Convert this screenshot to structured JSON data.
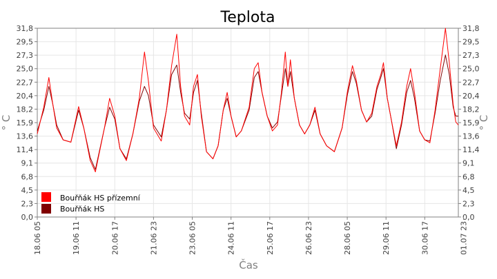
{
  "chart_data": {
    "type": "line",
    "title": "Teplota",
    "xlabel": "Čas",
    "ylabel": "° C",
    "ylabel_right": "° C",
    "yticks": [
      "0,0",
      "2,3",
      "4,5",
      "6,8",
      "9,1",
      "11,4",
      "13,6",
      "15,9",
      "18,2",
      "20,4",
      "22,7",
      "25,0",
      "27,3",
      "29,5",
      "31,8"
    ],
    "ylim": [
      0,
      31.8
    ],
    "xlim": [
      0,
      326
    ],
    "xticks": [
      {
        "label": "18.06 05",
        "x": 0
      },
      {
        "label": "19.06 11",
        "x": 30
      },
      {
        "label": "20.06 17",
        "x": 60
      },
      {
        "label": "21.06 23",
        "x": 90
      },
      {
        "label": "23.06 05",
        "x": 120
      },
      {
        "label": "24.06 11",
        "x": 150
      },
      {
        "label": "25.06 17",
        "x": 180
      },
      {
        "label": "26.06 23",
        "x": 210
      },
      {
        "label": "28.06 05",
        "x": 240
      },
      {
        "label": "29.06 11",
        "x": 270
      },
      {
        "label": "30.06 17",
        "x": 300
      },
      {
        "label": "01.07 23",
        "x": 330
      }
    ],
    "grid": true,
    "legend_position": "bottom-left",
    "series": [
      {
        "name": "Bouřňák HS přízemní",
        "color": "#ff0000",
        "points": [
          [
            0,
            14.0
          ],
          [
            5,
            18.5
          ],
          [
            9,
            23.5
          ],
          [
            12,
            19.0
          ],
          [
            15,
            15.0
          ],
          [
            20,
            13.0
          ],
          [
            26,
            12.6
          ],
          [
            32,
            18.6
          ],
          [
            36,
            15.0
          ],
          [
            41,
            9.5
          ],
          [
            45,
            7.6
          ],
          [
            52,
            15.0
          ],
          [
            56,
            20.0
          ],
          [
            60,
            17.0
          ],
          [
            64,
            11.5
          ],
          [
            69,
            9.5
          ],
          [
            74,
            14.0
          ],
          [
            79,
            20.0
          ],
          [
            83,
            27.8
          ],
          [
            86,
            23.0
          ],
          [
            90,
            15.0
          ],
          [
            96,
            12.8
          ],
          [
            100,
            18.0
          ],
          [
            104,
            25.5
          ],
          [
            108,
            30.8
          ],
          [
            111,
            22.0
          ],
          [
            114,
            17.0
          ],
          [
            118,
            15.5
          ],
          [
            121,
            22.0
          ],
          [
            124,
            24.0
          ],
          [
            127,
            17.0
          ],
          [
            131,
            11.0
          ],
          [
            136,
            9.8
          ],
          [
            140,
            12.0
          ],
          [
            144,
            18.0
          ],
          [
            147,
            21.0
          ],
          [
            150,
            17.0
          ],
          [
            154,
            13.5
          ],
          [
            158,
            14.5
          ],
          [
            164,
            18.5
          ],
          [
            168,
            25.0
          ],
          [
            171,
            26.0
          ],
          [
            174,
            21.0
          ],
          [
            178,
            17.0
          ],
          [
            182,
            14.5
          ],
          [
            186,
            15.5
          ],
          [
            189,
            21.0
          ],
          [
            192,
            27.8
          ],
          [
            194,
            22.0
          ],
          [
            196,
            26.5
          ],
          [
            199,
            20.0
          ],
          [
            203,
            15.5
          ],
          [
            207,
            14.0
          ],
          [
            211,
            15.5
          ],
          [
            215,
            18.5
          ],
          [
            219,
            14.0
          ],
          [
            224,
            12.0
          ],
          [
            230,
            11.0
          ],
          [
            236,
            15.0
          ],
          [
            240,
            21.0
          ],
          [
            244,
            25.5
          ],
          [
            247,
            23.0
          ],
          [
            251,
            18.0
          ],
          [
            255,
            16.0
          ],
          [
            259,
            17.5
          ],
          [
            263,
            22.0
          ],
          [
            266,
            24.0
          ],
          [
            268,
            26.0
          ],
          [
            271,
            20.0
          ],
          [
            274,
            16.5
          ],
          [
            278,
            12.0
          ],
          [
            282,
            16.0
          ],
          [
            286,
            22.0
          ],
          [
            289,
            25.0
          ],
          [
            292,
            21.0
          ],
          [
            296,
            14.5
          ],
          [
            300,
            13.0
          ],
          [
            304,
            12.5
          ],
          [
            308,
            18.0
          ],
          [
            312,
            25.0
          ],
          [
            316,
            31.8
          ],
          [
            319,
            26.0
          ],
          [
            322,
            19.0
          ],
          [
            324,
            16.0
          ],
          [
            326,
            15.5
          ]
        ]
      },
      {
        "name": "Bouřňák HS",
        "color": "#800000",
        "points": [
          [
            0,
            14.5
          ],
          [
            5,
            18.0
          ],
          [
            9,
            22.0
          ],
          [
            12,
            19.0
          ],
          [
            15,
            15.5
          ],
          [
            20,
            13.0
          ],
          [
            26,
            12.6
          ],
          [
            32,
            18.0
          ],
          [
            36,
            15.0
          ],
          [
            41,
            10.0
          ],
          [
            45,
            8.0
          ],
          [
            52,
            15.0
          ],
          [
            56,
            18.5
          ],
          [
            60,
            16.5
          ],
          [
            64,
            11.5
          ],
          [
            69,
            9.8
          ],
          [
            74,
            14.0
          ],
          [
            79,
            19.5
          ],
          [
            83,
            22.0
          ],
          [
            86,
            20.5
          ],
          [
            90,
            15.5
          ],
          [
            96,
            13.5
          ],
          [
            100,
            18.0
          ],
          [
            104,
            24.0
          ],
          [
            108,
            25.6
          ],
          [
            111,
            21.0
          ],
          [
            114,
            17.5
          ],
          [
            118,
            16.5
          ],
          [
            121,
            21.0
          ],
          [
            124,
            23.0
          ],
          [
            127,
            17.5
          ],
          [
            131,
            11.0
          ],
          [
            136,
            9.8
          ],
          [
            140,
            12.0
          ],
          [
            144,
            18.0
          ],
          [
            147,
            20.0
          ],
          [
            150,
            17.0
          ],
          [
            154,
            13.5
          ],
          [
            158,
            14.5
          ],
          [
            164,
            18.0
          ],
          [
            168,
            23.5
          ],
          [
            171,
            24.5
          ],
          [
            174,
            21.0
          ],
          [
            178,
            17.0
          ],
          [
            182,
            15.0
          ],
          [
            186,
            16.0
          ],
          [
            189,
            20.5
          ],
          [
            192,
            25.0
          ],
          [
            194,
            22.0
          ],
          [
            196,
            24.5
          ],
          [
            199,
            20.0
          ],
          [
            203,
            15.5
          ],
          [
            207,
            14.0
          ],
          [
            211,
            15.5
          ],
          [
            215,
            18.0
          ],
          [
            219,
            14.0
          ],
          [
            224,
            12.0
          ],
          [
            230,
            11.0
          ],
          [
            236,
            15.0
          ],
          [
            240,
            20.5
          ],
          [
            244,
            24.5
          ],
          [
            247,
            22.5
          ],
          [
            251,
            18.0
          ],
          [
            255,
            16.0
          ],
          [
            259,
            17.0
          ],
          [
            263,
            21.5
          ],
          [
            266,
            23.5
          ],
          [
            268,
            25.0
          ],
          [
            271,
            20.0
          ],
          [
            274,
            16.5
          ],
          [
            278,
            11.5
          ],
          [
            282,
            15.5
          ],
          [
            286,
            21.0
          ],
          [
            289,
            23.0
          ],
          [
            292,
            20.0
          ],
          [
            296,
            14.5
          ],
          [
            300,
            13.0
          ],
          [
            304,
            12.8
          ],
          [
            308,
            17.5
          ],
          [
            312,
            23.0
          ],
          [
            316,
            27.3
          ],
          [
            319,
            24.0
          ],
          [
            322,
            18.5
          ],
          [
            324,
            17.0
          ],
          [
            326,
            17.0
          ]
        ]
      }
    ]
  }
}
